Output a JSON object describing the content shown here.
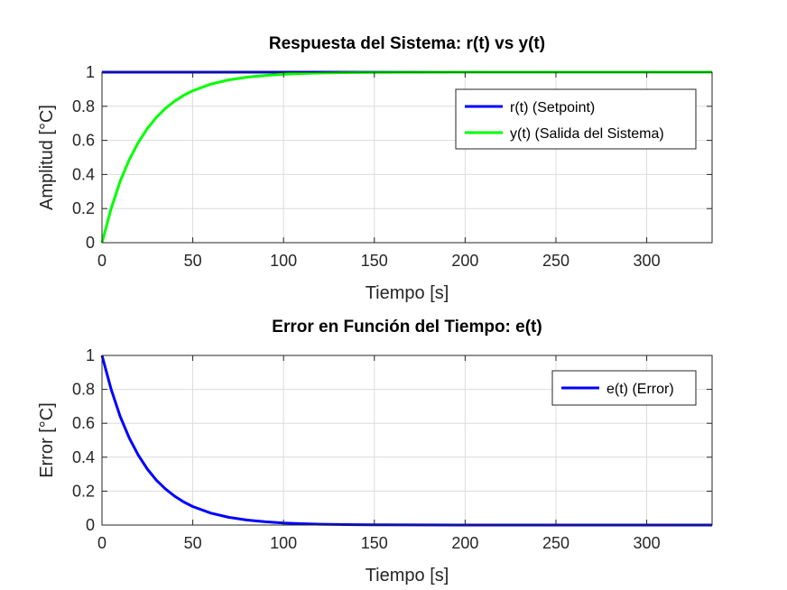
{
  "chart_data": [
    {
      "type": "line",
      "title": "Respuesta del Sistema: r(t) vs y(t)",
      "xlabel": "Tiempo [s]",
      "ylabel": "Amplitud [°C]",
      "xlim": [
        0,
        336
      ],
      "ylim": [
        0,
        1
      ],
      "xticks": [
        0,
        50,
        100,
        150,
        200,
        250,
        300
      ],
      "yticks": [
        0,
        0.2,
        0.4,
        0.6,
        0.8,
        1
      ],
      "ytick_labels": [
        "0",
        "0.2",
        "0.4",
        "0.6",
        "0.8",
        "1"
      ],
      "grid": true,
      "legend_position": "top-right",
      "x": [
        0,
        5,
        10,
        15,
        20,
        25,
        30,
        35,
        40,
        45,
        50,
        60,
        70,
        80,
        90,
        100,
        110,
        120,
        130,
        140,
        150,
        175,
        200,
        250,
        300,
        336
      ],
      "series": [
        {
          "name": "r(t) (Setpoint)",
          "color": "#0000ff",
          "values": [
            1,
            1,
            1,
            1,
            1,
            1,
            1,
            1,
            1,
            1,
            1,
            1,
            1,
            1,
            1,
            1,
            1,
            1,
            1,
            1,
            1,
            1,
            1,
            1,
            1,
            1
          ]
        },
        {
          "name": "y(t) (Salida del Sistema)",
          "color": "#00ff00",
          "values": [
            0,
            0.199,
            0.359,
            0.486,
            0.588,
            0.67,
            0.736,
            0.788,
            0.83,
            0.864,
            0.891,
            0.93,
            0.955,
            0.971,
            0.981,
            0.988,
            0.992,
            0.995,
            0.997,
            0.998,
            0.9987,
            0.9996,
            0.9999,
            1,
            1,
            1
          ]
        }
      ]
    },
    {
      "type": "line",
      "title": "Error en Función del Tiempo: e(t)",
      "xlabel": "Tiempo [s]",
      "ylabel": "Error [°C]",
      "xlim": [
        0,
        336
      ],
      "ylim": [
        0,
        1
      ],
      "xticks": [
        0,
        50,
        100,
        150,
        200,
        250,
        300
      ],
      "yticks": [
        0,
        0.2,
        0.4,
        0.6,
        0.8,
        1
      ],
      "ytick_labels": [
        "0",
        "0.2",
        "0.4",
        "0.6",
        "0.8",
        "1"
      ],
      "grid": true,
      "legend_position": "top-right",
      "x": [
        0,
        5,
        10,
        15,
        20,
        25,
        30,
        35,
        40,
        45,
        50,
        60,
        70,
        80,
        90,
        100,
        110,
        120,
        130,
        140,
        150,
        175,
        200,
        250,
        300,
        336
      ],
      "series": [
        {
          "name": "e(t) (Error)",
          "color": "#0000ff",
          "values": [
            1,
            0.801,
            0.641,
            0.514,
            0.412,
            0.33,
            0.264,
            0.212,
            0.17,
            0.136,
            0.109,
            0.07,
            0.045,
            0.029,
            0.019,
            0.012,
            0.008,
            0.005,
            0.003,
            0.002,
            0.0013,
            0.0004,
            0.0001,
            0,
            0,
            0
          ]
        }
      ]
    }
  ]
}
